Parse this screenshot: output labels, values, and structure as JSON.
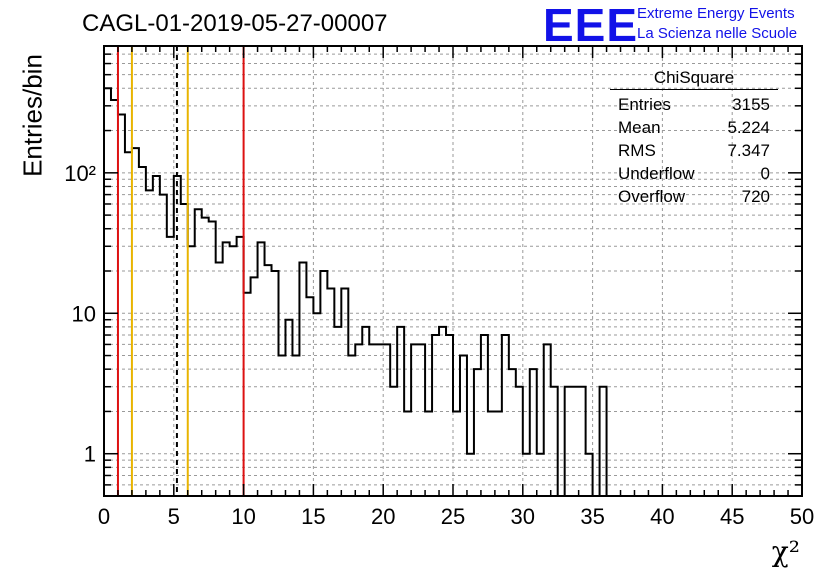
{
  "title": "CAGL-01-2019-05-27-00007",
  "logo": {
    "mark": "EEE",
    "line1": "Extreme Energy Events",
    "line2": "La Scienza nelle Scuole",
    "color": "#1212e8"
  },
  "stats": {
    "title": "ChiSquare",
    "rows": [
      {
        "label": "Entries",
        "value": "3155"
      },
      {
        "label": "Mean",
        "value": "5.224"
      },
      {
        "label": "RMS",
        "value": "7.347"
      },
      {
        "label": "Underflow",
        "value": "0"
      },
      {
        "label": "Overflow",
        "value": "720"
      }
    ]
  },
  "chart_data": {
    "type": "histogram",
    "title": "CAGL-01-2019-05-27-00007",
    "xlabel": "χ²",
    "ylabel": "Entries/bin",
    "xlim": [
      0,
      50
    ],
    "ylim": [
      0.5,
      800
    ],
    "yscale": "log",
    "grid": true,
    "bin_width": 0.5,
    "xticks": [
      0,
      5,
      10,
      15,
      20,
      25,
      30,
      35,
      40,
      45,
      50
    ],
    "yticks": [
      {
        "value": 1,
        "label": "1"
      },
      {
        "value": 10,
        "label": "10"
      },
      {
        "value": 100,
        "label": "10²"
      }
    ],
    "counts": [
      400,
      330,
      260,
      140,
      150,
      110,
      75,
      95,
      70,
      35,
      95,
      60,
      30,
      55,
      48,
      45,
      23,
      32,
      30,
      35,
      14,
      18,
      32,
      22,
      20,
      5,
      9,
      5,
      23,
      13,
      10,
      20,
      15,
      8,
      15,
      5,
      6,
      8,
      6,
      6,
      6,
      3,
      8,
      2,
      6,
      6,
      2,
      7,
      8,
      7,
      2,
      5,
      1,
      4,
      7,
      2,
      2,
      7,
      4,
      3,
      1,
      4,
      1,
      6,
      3,
      0,
      3,
      3,
      3,
      1,
      0,
      3,
      0,
      0,
      0,
      0,
      0,
      0,
      0,
      0,
      0,
      0,
      0,
      0,
      0,
      0,
      0,
      0,
      0,
      0,
      0,
      0,
      0,
      0,
      0,
      0,
      0,
      0,
      0,
      0
    ],
    "vlines": [
      {
        "x": 1,
        "color": "#dd1111",
        "style": "solid"
      },
      {
        "x": 2,
        "color": "#e8b400",
        "style": "solid"
      },
      {
        "x": 5.224,
        "color": "#000000",
        "style": "dashed"
      },
      {
        "x": 6,
        "color": "#e8b400",
        "style": "solid"
      },
      {
        "x": 10,
        "color": "#dd1111",
        "style": "solid"
      }
    ]
  }
}
